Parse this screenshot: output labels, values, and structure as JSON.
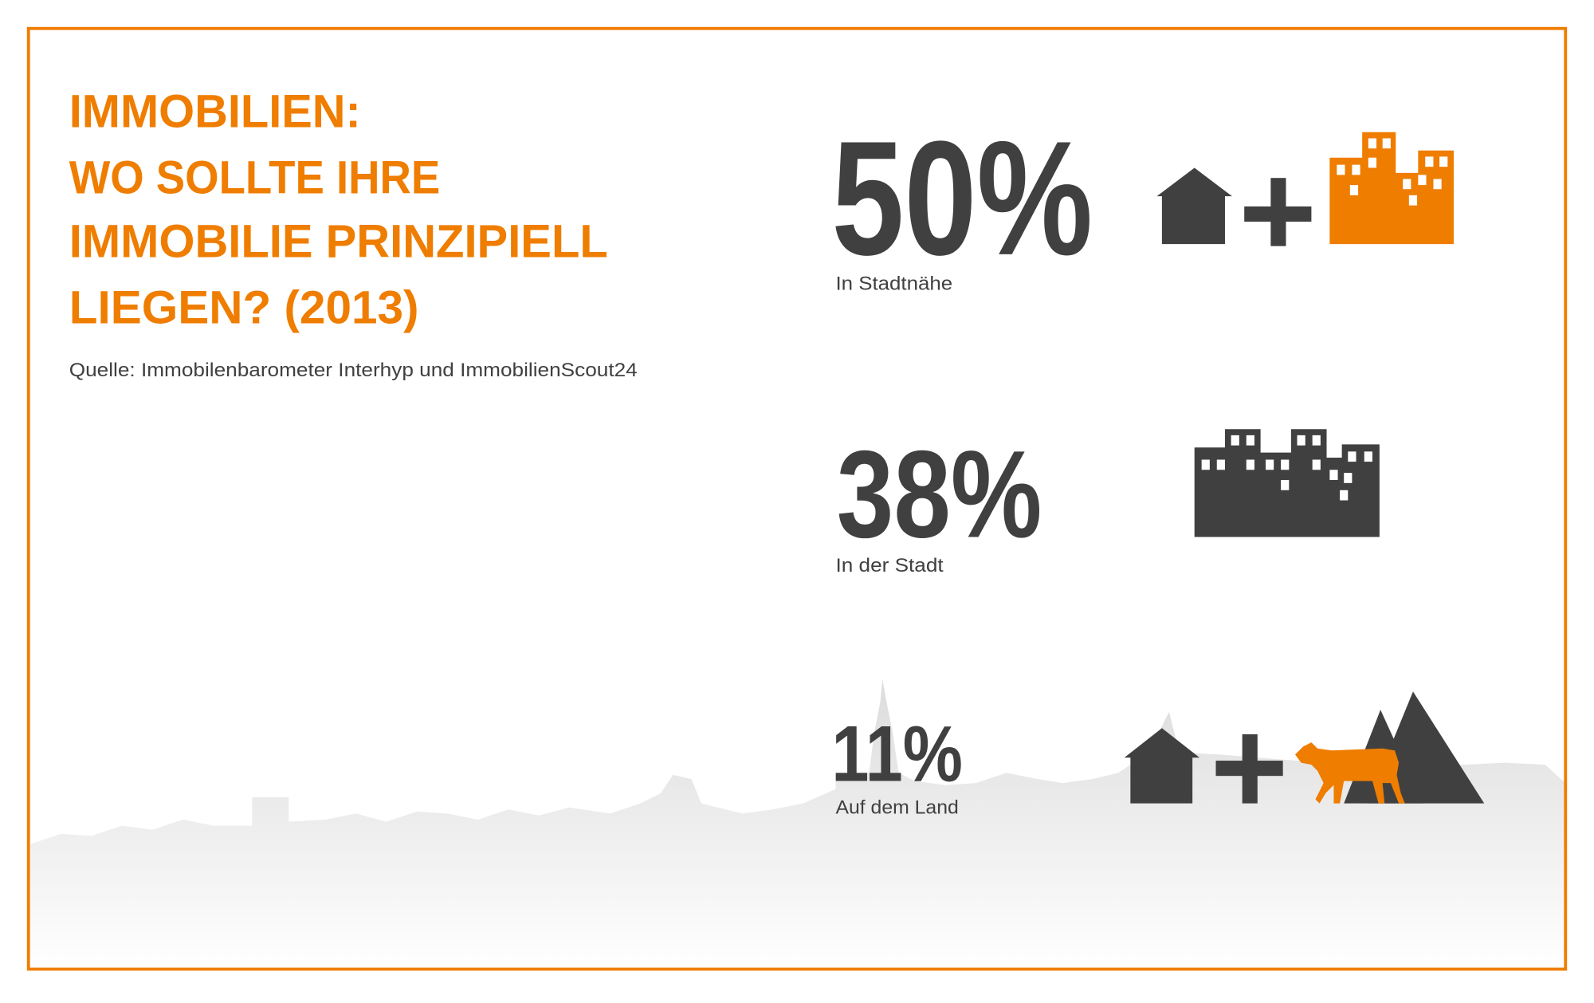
{
  "header": {
    "title_lines": [
      "IMMOBILIEN:",
      "WO SOLLTE IHRE",
      "IMMOBILIE PRINZIPIELL",
      "LIEGEN? (2013)"
    ],
    "source": "Quelle: Immobilenbarometer Interhyp und ImmobilienScout24"
  },
  "items": [
    {
      "value": "50%",
      "label": "In Stadtnähe"
    },
    {
      "value": "38%",
      "label": "In der Stadt"
    },
    {
      "value": "11%",
      "label": "Auf dem Land"
    }
  ]
}
